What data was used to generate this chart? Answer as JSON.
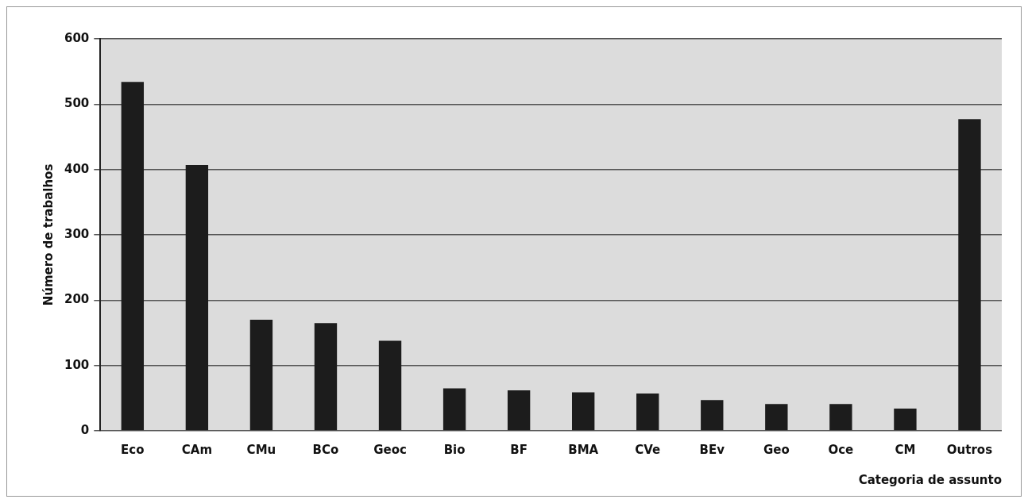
{
  "chart_data": {
    "type": "bar",
    "xlabel": "Categoria de assunto",
    "ylabel": "Número de trabalhos",
    "categories": [
      "Eco",
      "CAm",
      "CMu",
      "BCo",
      "Geoc",
      "Bio",
      "BF",
      "BMA",
      "CVe",
      "BEv",
      "Geo",
      "Oce",
      "CM",
      "Outros"
    ],
    "values": [
      534,
      407,
      170,
      165,
      138,
      65,
      62,
      59,
      57,
      47,
      41,
      41,
      34,
      477
    ],
    "color": "#1c1c1c",
    "ylim": [
      0,
      600
    ],
    "yticks": [
      0,
      100,
      200,
      300,
      400,
      500,
      600
    ],
    "grid": "y",
    "legend": false
  }
}
